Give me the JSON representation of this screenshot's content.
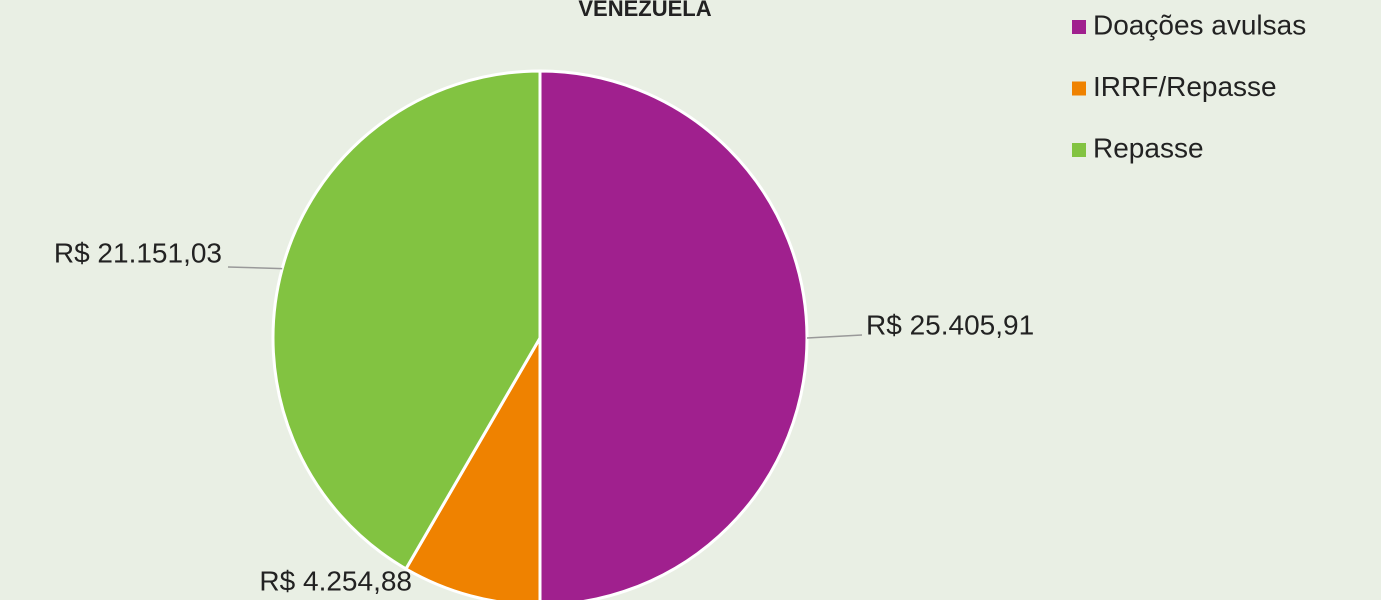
{
  "chart_data": {
    "type": "pie",
    "title": "VENEZUELA",
    "categories": [
      "Doações avulsas",
      "IRRF/Repasse",
      "Repasse"
    ],
    "values": [
      25405.91,
      4254.88,
      21151.03
    ],
    "value_labels": [
      "R$ 25.405,91",
      "R$ 4.254,88",
      "R$ 21.151,03"
    ],
    "colors": [
      "#a0208e",
      "#ef8200",
      "#82c341"
    ],
    "legend": "top-right"
  }
}
